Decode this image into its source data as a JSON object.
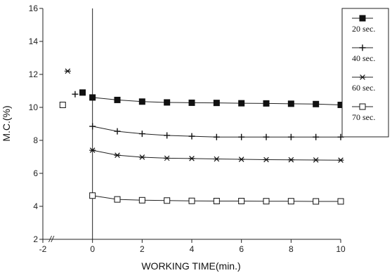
{
  "chart_data": {
    "type": "line",
    "title": "",
    "xlabel": "WORKING TIME(min.)",
    "ylabel": "M.C.(%)",
    "xlim": [
      -2,
      10
    ],
    "ylim": [
      2,
      16
    ],
    "x_ticks": [
      -2,
      0,
      2,
      4,
      6,
      8,
      10
    ],
    "y_ticks": [
      2,
      4,
      6,
      8,
      10,
      12,
      14,
      16
    ],
    "x_tick_labels": [
      "-2",
      "0",
      "2",
      "4",
      "6",
      "8",
      "10"
    ],
    "y_tick_labels": [
      "2",
      "4",
      "6",
      "8",
      "10",
      "12",
      "14",
      "16"
    ],
    "axis_break_mark": "//",
    "vertical_reference_x": 0,
    "legend_position": "right",
    "grid": false,
    "series": [
      {
        "name": "20 sec.",
        "marker": "filled-square",
        "pre_points": [
          {
            "x": -0.4,
            "y": 10.9
          }
        ],
        "x": [
          0,
          1,
          2,
          3,
          4,
          5,
          6,
          7,
          8,
          9,
          10
        ],
        "values": [
          10.6,
          10.45,
          10.35,
          10.3,
          10.28,
          10.27,
          10.25,
          10.24,
          10.22,
          10.2,
          10.15
        ]
      },
      {
        "name": "40 sec.",
        "marker": "plus",
        "pre_points": [
          {
            "x": -0.7,
            "y": 10.8
          }
        ],
        "x": [
          0,
          1,
          2,
          3,
          4,
          5,
          6,
          7,
          8,
          9,
          10
        ],
        "values": [
          8.85,
          8.55,
          8.4,
          8.3,
          8.25,
          8.2,
          8.2,
          8.2,
          8.2,
          8.2,
          8.2
        ]
      },
      {
        "name": "60 sec.",
        "marker": "asterisk",
        "pre_points": [
          {
            "x": -1.0,
            "y": 12.2
          }
        ],
        "x": [
          0,
          1,
          2,
          3,
          4,
          5,
          6,
          7,
          8,
          9,
          10
        ],
        "values": [
          7.4,
          7.1,
          6.98,
          6.92,
          6.9,
          6.87,
          6.85,
          6.83,
          6.82,
          6.81,
          6.8
        ]
      },
      {
        "name": "70 sec.",
        "marker": "open-square",
        "pre_points": [
          {
            "x": -1.2,
            "y": 10.15
          }
        ],
        "x": [
          0,
          1,
          2,
          3,
          4,
          5,
          6,
          7,
          8,
          9,
          10
        ],
        "values": [
          4.65,
          4.42,
          4.37,
          4.35,
          4.33,
          4.32,
          4.32,
          4.31,
          4.31,
          4.3,
          4.3
        ]
      }
    ]
  }
}
